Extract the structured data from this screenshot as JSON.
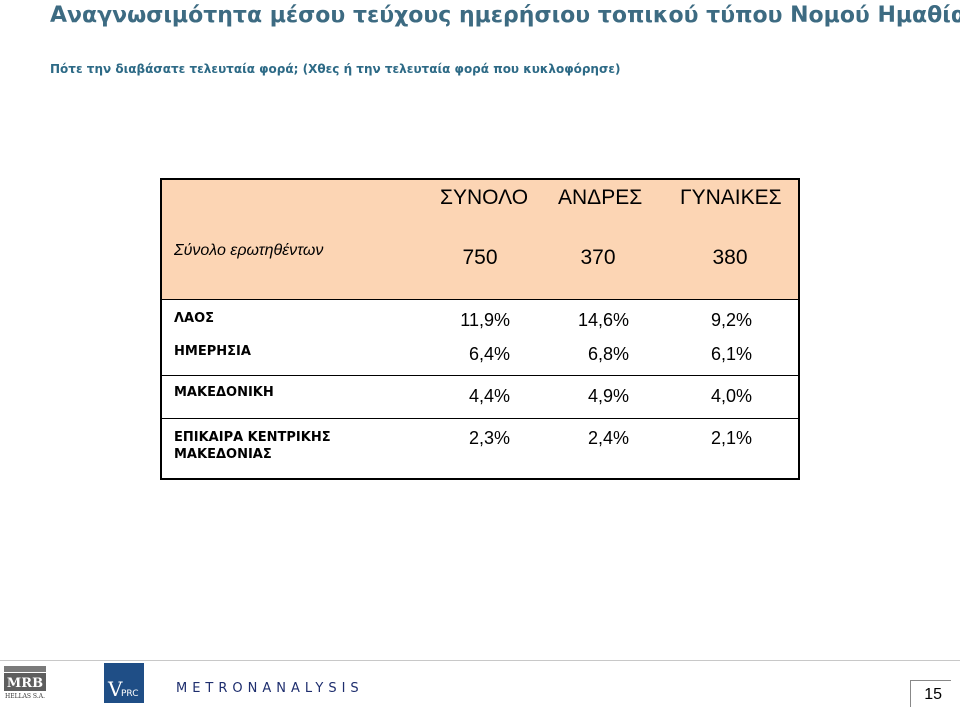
{
  "header": {
    "title": "Αναγνωσιμότητα μέσου τεύχους ημερήσιου τοπικού τύπου Νομού Ημαθίας – Φύλο",
    "subtitle": "Πότε την διαβάσατε τελευταία φορά; (Χθες ή την τελευταία φορά που κυκλοφόρησε)"
  },
  "table": {
    "columns": [
      "ΣΥΝΟΛΟ",
      "ΑΝΔΡΕΣ",
      "ΓΥΝΑΙΚΕΣ"
    ],
    "respondents": {
      "label": "Σύνολο ερωτηθέντων",
      "values": [
        "750",
        "370",
        "380"
      ]
    },
    "rows": [
      {
        "label": "ΛΑΟΣ",
        "values": [
          "11,9%",
          "14,6%",
          "9,2%"
        ]
      },
      {
        "label": "ΗΜΕΡΗΣΙΑ",
        "values": [
          "6,4%",
          "6,8%",
          "6,1%"
        ]
      },
      {
        "label": "ΜΑΚΕΔΟΝΙΚΗ",
        "values": [
          "4,4%",
          "4,9%",
          "4,0%"
        ]
      },
      {
        "label": "ΕΠΙΚΑΙΡΑ ΚΕΝΤΡΙΚΗΣ ΜΑΚΕΔΟΝΙΑΣ",
        "values": [
          "2,3%",
          "2,4%",
          "2,1%"
        ]
      }
    ]
  },
  "footer": {
    "mrb_logo_text": "MRB",
    "mrb_logo_sub": "HELLAS S.A.",
    "vprc_logo_text": "VPRC",
    "metron_text": "METRONANALYSIS",
    "page_number": "15"
  },
  "colors": {
    "title": "#3d6b82",
    "header_band": "#fcd5b4",
    "brand_blue": "#1f4e86"
  }
}
